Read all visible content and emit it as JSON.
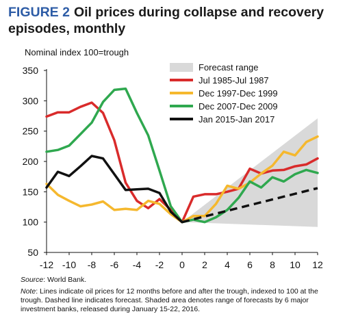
{
  "figure": {
    "label": "FIGURE 2",
    "title": "Oil prices during collapse and recovery episodes, monthly"
  },
  "footer": {
    "source_label": "Source",
    "source_text": ": World Bank.",
    "note_label": "Note",
    "note_text": ": Lines indicate oil prices for 12 months before and after the trough, indexed to 100 at the trough. Dashed line indicates forecast. Shaded area denotes range of forecasts by 6 major investment banks, released during January 15-22, 2016."
  },
  "chart_data": {
    "type": "line",
    "ylabel": "Nominal index 100=trough",
    "xlim": [
      -12,
      12
    ],
    "ylim": [
      50,
      350
    ],
    "x_ticks": [
      -12,
      -10,
      -8,
      -6,
      -4,
      -2,
      0,
      2,
      4,
      6,
      8,
      10,
      12
    ],
    "y_ticks": [
      50,
      100,
      150,
      200,
      250,
      300,
      350
    ],
    "legend_position": "top-right",
    "series": [
      {
        "name": "Jul 1985-Jul 1987",
        "color": "#d92b2b",
        "x": [
          -12,
          -11,
          -10,
          -9,
          -8,
          -7,
          -6,
          -5,
          -4,
          -3,
          -2,
          -1,
          0,
          1,
          2,
          3,
          4,
          5,
          6,
          7,
          8,
          9,
          10,
          11,
          12
        ],
        "y": [
          274,
          281,
          281,
          290,
          297,
          280,
          235,
          165,
          135,
          123,
          138,
          120,
          100,
          142,
          146,
          146,
          150,
          155,
          188,
          180,
          185,
          186,
          192,
          195,
          205
        ]
      },
      {
        "name": "Dec 1997-Dec 1999",
        "color": "#f5b82e",
        "x": [
          -12,
          -11,
          -10,
          -9,
          -8,
          -7,
          -6,
          -5,
          -4,
          -3,
          -2,
          -1,
          0,
          1,
          2,
          3,
          4,
          5,
          6,
          7,
          8,
          9,
          10,
          11,
          12
        ],
        "y": [
          163,
          145,
          135,
          126,
          129,
          134,
          120,
          122,
          120,
          135,
          130,
          113,
          100,
          110,
          110,
          130,
          160,
          155,
          165,
          180,
          193,
          216,
          210,
          232,
          241
        ]
      },
      {
        "name": "Dec 2007-Dec 2009",
        "color": "#2fa84f",
        "x": [
          -12,
          -11,
          -10,
          -9,
          -8,
          -7,
          -6,
          -5,
          -4,
          -3,
          -2,
          -1,
          0,
          1,
          2,
          3,
          4,
          5,
          6,
          7,
          8,
          9,
          10,
          11,
          12
        ],
        "y": [
          216,
          219,
          226,
          245,
          264,
          298,
          318,
          320,
          280,
          243,
          185,
          126,
          100,
          104,
          100,
          108,
          120,
          140,
          167,
          157,
          174,
          167,
          179,
          186,
          181
        ]
      },
      {
        "name": "Jan 2015-Jan 2017",
        "color": "#111111",
        "x": [
          -12,
          -11,
          -10,
          -9,
          -8,
          -7,
          -6,
          -5,
          -4,
          -3,
          -2,
          -1,
          0
        ],
        "y": [
          157,
          183,
          176,
          192,
          209,
          205,
          179,
          153,
          154,
          155,
          148,
          117,
          100
        ]
      }
    ],
    "forecast": {
      "series_name": "Jan 2015-Jan 2017",
      "line_style": "dashed",
      "x": [
        0,
        12
      ],
      "y": [
        100,
        156
      ]
    },
    "forecast_range": {
      "name": "Forecast range",
      "color": "#d9d9d9",
      "x": [
        0,
        12
      ],
      "upper": [
        100,
        271
      ],
      "lower": [
        100,
        92
      ]
    }
  }
}
